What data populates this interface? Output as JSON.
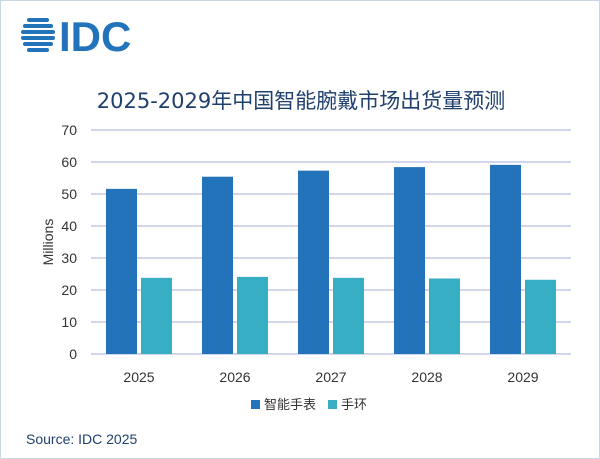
{
  "logo_text": "IDC",
  "source": "Source: IDC 2025",
  "colors": {
    "smartwatch": "#2273b9",
    "band": "#38aec4",
    "grid": "#b8bde0",
    "text": "#1f3f6e"
  },
  "chart_data": {
    "type": "bar",
    "title": "2025-2029年中国智能腕戴市场出货量预测",
    "xlabel": "",
    "ylabel": "Millions",
    "ylim": [
      0,
      70
    ],
    "yticks": [
      0,
      10,
      20,
      30,
      40,
      50,
      60,
      70
    ],
    "grid": true,
    "legend_position": "bottom",
    "categories": [
      "2025",
      "2026",
      "2027",
      "2028",
      "2029"
    ],
    "series": [
      {
        "name": "智能手表",
        "values": [
          51.6,
          55.4,
          57.3,
          58.4,
          59.1
        ]
      },
      {
        "name": "手环",
        "values": [
          23.8,
          24.1,
          23.8,
          23.6,
          23.2
        ]
      }
    ]
  }
}
